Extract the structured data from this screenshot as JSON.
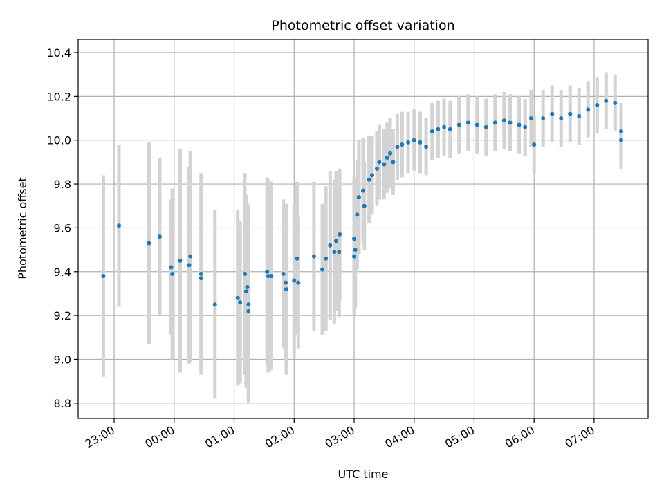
{
  "chart_data": {
    "type": "scatter",
    "title": "Photometric offset variation",
    "xlabel": "UTC time",
    "ylabel": "Photometric offset",
    "x_unit": "hours (UTC, relative to 00:00 of the second day)",
    "xlim": [
      -1.6,
      7.9
    ],
    "ylim": [
      8.73,
      10.46
    ],
    "x_ticks": [
      -1,
      0,
      1,
      2,
      3,
      4,
      5,
      6,
      7
    ],
    "x_tick_labels": [
      "23:00",
      "00:00",
      "01:00",
      "02:00",
      "03:00",
      "04:00",
      "05:00",
      "06:00",
      "07:00"
    ],
    "y_ticks": [
      8.8,
      9.0,
      9.2,
      9.4,
      9.6,
      9.8,
      10.0,
      10.2,
      10.4
    ],
    "y_tick_labels": [
      "8.8",
      "9.0",
      "9.2",
      "9.4",
      "9.6",
      "9.8",
      "10.0",
      "10.2",
      "10.4"
    ],
    "grid": true,
    "colors": {
      "points": "#1f77b4",
      "error_bars": "#d3d3d3",
      "grid": "#b0b0b0"
    },
    "points": [
      [
        -1.18,
        9.38,
        0.46
      ],
      [
        -0.92,
        9.61,
        0.37
      ],
      [
        -0.42,
        9.53,
        0.46
      ],
      [
        -0.24,
        9.56,
        0.36
      ],
      [
        -0.05,
        9.42,
        0.31
      ],
      [
        -0.03,
        9.39,
        0.39
      ],
      [
        0.1,
        9.45,
        0.51
      ],
      [
        0.25,
        9.43,
        0.45
      ],
      [
        0.27,
        9.47,
        0.48
      ],
      [
        0.45,
        9.39,
        0.46
      ],
      [
        0.45,
        9.37,
        0.42
      ],
      [
        0.68,
        9.25,
        0.43
      ],
      [
        1.06,
        9.28,
        0.4
      ],
      [
        1.1,
        9.26,
        0.37
      ],
      [
        1.18,
        9.39,
        0.46
      ],
      [
        1.2,
        9.31,
        0.44
      ],
      [
        1.22,
        9.33,
        0.38
      ],
      [
        1.24,
        9.25,
        0.45
      ],
      [
        1.24,
        9.22,
        0.4
      ],
      [
        1.55,
        9.4,
        0.43
      ],
      [
        1.57,
        9.38,
        0.44
      ],
      [
        1.62,
        9.38,
        0.43
      ],
      [
        1.82,
        9.39,
        0.34
      ],
      [
        1.86,
        9.35,
        0.35
      ],
      [
        1.87,
        9.32,
        0.39
      ],
      [
        2.0,
        9.36,
        0.35
      ],
      [
        2.05,
        9.46,
        0.35
      ],
      [
        2.07,
        9.35,
        0.3
      ],
      [
        2.33,
        9.47,
        0.34
      ],
      [
        2.47,
        9.41,
        0.3
      ],
      [
        2.53,
        9.46,
        0.33
      ],
      [
        2.6,
        9.52,
        0.34
      ],
      [
        2.67,
        9.49,
        0.33
      ],
      [
        2.7,
        9.54,
        0.32
      ],
      [
        2.75,
        9.49,
        0.3
      ],
      [
        2.76,
        9.57,
        0.3
      ],
      [
        3.0,
        9.55,
        0.28
      ],
      [
        3.0,
        9.47,
        0.27
      ],
      [
        3.02,
        9.5,
        0.27
      ],
      [
        3.05,
        9.66,
        0.25
      ],
      [
        3.08,
        9.74,
        0.26
      ],
      [
        3.15,
        9.77,
        0.24
      ],
      [
        3.17,
        9.7,
        0.2
      ],
      [
        3.25,
        9.82,
        0.2
      ],
      [
        3.3,
        9.84,
        0.18
      ],
      [
        3.38,
        9.87,
        0.17
      ],
      [
        3.42,
        9.9,
        0.17
      ],
      [
        3.5,
        9.89,
        0.16
      ],
      [
        3.55,
        9.92,
        0.16
      ],
      [
        3.6,
        9.94,
        0.16
      ],
      [
        3.65,
        9.9,
        0.15
      ],
      [
        3.72,
        9.97,
        0.15
      ],
      [
        3.8,
        9.98,
        0.15
      ],
      [
        3.9,
        9.99,
        0.14
      ],
      [
        4.0,
        10.0,
        0.14
      ],
      [
        4.1,
        9.99,
        0.14
      ],
      [
        4.2,
        9.97,
        0.13
      ],
      [
        4.3,
        10.04,
        0.13
      ],
      [
        4.4,
        10.05,
        0.13
      ],
      [
        4.5,
        10.06,
        0.13
      ],
      [
        4.6,
        10.05,
        0.13
      ],
      [
        4.75,
        10.07,
        0.13
      ],
      [
        4.9,
        10.08,
        0.13
      ],
      [
        5.05,
        10.07,
        0.13
      ],
      [
        5.2,
        10.06,
        0.13
      ],
      [
        5.35,
        10.08,
        0.13
      ],
      [
        5.5,
        10.09,
        0.13
      ],
      [
        5.6,
        10.08,
        0.13
      ],
      [
        5.75,
        10.07,
        0.13
      ],
      [
        5.85,
        10.06,
        0.13
      ],
      [
        5.95,
        10.1,
        0.13
      ],
      [
        6.0,
        9.98,
        0.13
      ],
      [
        6.15,
        10.1,
        0.13
      ],
      [
        6.3,
        10.12,
        0.13
      ],
      [
        6.45,
        10.1,
        0.13
      ],
      [
        6.6,
        10.12,
        0.13
      ],
      [
        6.75,
        10.11,
        0.13
      ],
      [
        6.9,
        10.14,
        0.13
      ],
      [
        7.05,
        10.16,
        0.13
      ],
      [
        7.2,
        10.18,
        0.13
      ],
      [
        7.35,
        10.17,
        0.13
      ],
      [
        7.45,
        10.04,
        0.13
      ],
      [
        7.45,
        10.0,
        0.13
      ]
    ]
  }
}
